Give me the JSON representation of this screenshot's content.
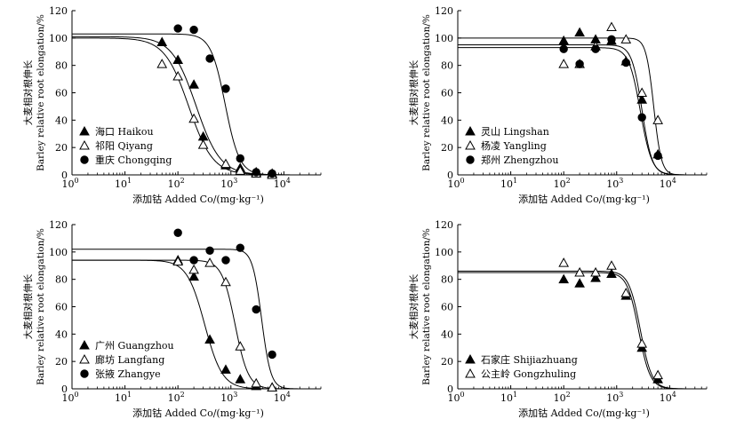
{
  "chart_data": [
    {
      "type": "scatter",
      "xlabel": "添加钴 Added Co/(mg·kg⁻¹)",
      "ylabel_cn": "大麦相对根伸长",
      "ylabel_en": "Barley relative root elongation/%",
      "x_scale": "log",
      "xlim": [
        1,
        50000
      ],
      "ylim": [
        0,
        120
      ],
      "yticks": [
        "0",
        "20",
        "40",
        "60",
        "80",
        "100",
        "120"
      ],
      "xtick_base": "10",
      "xtick_exps": [
        "0",
        "1",
        "2",
        "3",
        "4"
      ],
      "legend_position": "lower-left",
      "series": [
        {
          "name": "海口 Haikou",
          "marker": "filled-triangle",
          "fit": {
            "top": 101,
            "ec50": 220,
            "slope": 1.9
          },
          "x": [
            50,
            100,
            200,
            300,
            800,
            1500,
            3000,
            6000
          ],
          "y": [
            97,
            84,
            66,
            28,
            7,
            5,
            2,
            1
          ]
        },
        {
          "name": "祁阳 Qiyang",
          "marker": "open-triangle",
          "fit": {
            "top": 100,
            "ec50": 160,
            "slope": 1.9
          },
          "x": [
            50,
            100,
            200,
            300,
            800,
            1500,
            3000,
            6000
          ],
          "y": [
            81,
            72,
            41,
            22,
            8,
            3,
            1,
            0
          ]
        },
        {
          "name": "重庆 Chongqing",
          "marker": "filled-circle",
          "fit": {
            "top": 103,
            "ec50": 780,
            "slope": 3.2
          },
          "x": [
            100,
            200,
            400,
            800,
            1500,
            3000,
            6000
          ],
          "y": [
            107,
            106,
            85,
            63,
            12,
            2,
            1
          ]
        }
      ]
    },
    {
      "type": "scatter",
      "xlabel": "添加钴 Added Co/(mg·kg⁻¹)",
      "ylabel_cn": "大麦相对根伸长",
      "ylabel_en": "Barley relative root elongation/%",
      "x_scale": "log",
      "xlim": [
        1,
        50000
      ],
      "ylim": [
        0,
        120
      ],
      "yticks": [
        "0",
        "20",
        "40",
        "60",
        "80",
        "100",
        "120"
      ],
      "xtick_base": "10",
      "xtick_exps": [
        "0",
        "1",
        "2",
        "3",
        "4"
      ],
      "legend_position": "lower-left",
      "series": [
        {
          "name": "灵山 Lingshan",
          "marker": "filled-triangle",
          "fit": {
            "top": 95,
            "ec50": 3000,
            "slope": 4.5
          },
          "x": [
            100,
            200,
            400,
            800,
            1500,
            3000,
            6000
          ],
          "y": [
            98,
            104,
            99,
            98,
            83,
            55,
            15
          ]
        },
        {
          "name": "杨凌 Yangling",
          "marker": "open-triangle",
          "fit": {
            "top": 100,
            "ec50": 5000,
            "slope": 6.0
          },
          "x": [
            100,
            200,
            400,
            800,
            1500,
            3000,
            6000
          ],
          "y": [
            81,
            81,
            94,
            108,
            99,
            60,
            40
          ]
        },
        {
          "name": "郑州 Zhengzhou",
          "marker": "filled-circle",
          "fit": {
            "top": 93,
            "ec50": 2800,
            "slope": 4.0
          },
          "x": [
            100,
            200,
            400,
            800,
            1500,
            3000,
            6000
          ],
          "y": [
            92,
            81,
            92,
            99,
            82,
            42,
            14
          ]
        }
      ]
    },
    {
      "type": "scatter",
      "xlabel": "添加钴 Added Co/(mg·kg⁻¹)",
      "ylabel_cn": "大麦相对根伸长",
      "ylabel_en": "Barley relative root elongation/%",
      "x_scale": "log",
      "xlim": [
        1,
        50000
      ],
      "ylim": [
        0,
        120
      ],
      "yticks": [
        "0",
        "20",
        "40",
        "60",
        "80",
        "100",
        "120"
      ],
      "xtick_base": "10",
      "xtick_exps": [
        "0",
        "1",
        "2",
        "3",
        "4"
      ],
      "legend_position": "lower-left",
      "series": [
        {
          "name": "广州 Guangzhou",
          "marker": "filled-triangle",
          "fit": {
            "top": 94,
            "ec50": 320,
            "slope": 2.6
          },
          "x": [
            100,
            200,
            400,
            800,
            1500,
            3000,
            6000
          ],
          "y": [
            94,
            82,
            36,
            14,
            7,
            2,
            1
          ]
        },
        {
          "name": "廊坊 Langfang",
          "marker": "open-triangle",
          "fit": {
            "top": 94,
            "ec50": 1200,
            "slope": 3.5
          },
          "x": [
            100,
            200,
            400,
            800,
            1500,
            3000,
            6000
          ],
          "y": [
            93,
            87,
            92,
            78,
            31,
            4,
            1
          ]
        },
        {
          "name": "张掖 Zhangye",
          "marker": "filled-circle",
          "fit": {
            "top": 102,
            "ec50": 3800,
            "slope": 5.0
          },
          "x": [
            100,
            200,
            400,
            800,
            1500,
            3000,
            6000
          ],
          "y": [
            114,
            94,
            101,
            94,
            103,
            58,
            25
          ]
        }
      ]
    },
    {
      "type": "scatter",
      "xlabel": "添加钴 Added Co/(mg·kg⁻¹)",
      "ylabel_cn": "大麦相对根伸长",
      "ylabel_en": "Barley relative root elongation/%",
      "x_scale": "log",
      "xlim": [
        1,
        50000
      ],
      "ylim": [
        0,
        120
      ],
      "yticks": [
        "0",
        "20",
        "40",
        "60",
        "80",
        "100",
        "120"
      ],
      "xtick_base": "10",
      "xtick_exps": [
        "0",
        "1",
        "2",
        "3",
        "4"
      ],
      "legend_position": "lower-left",
      "series": [
        {
          "name": "石家庄 Shijiazhuang",
          "marker": "filled-triangle",
          "fit": {
            "top": 85,
            "ec50": 2600,
            "slope": 4.0
          },
          "x": [
            100,
            200,
            400,
            800,
            1500,
            3000,
            6000
          ],
          "y": [
            80,
            77,
            81,
            84,
            68,
            30,
            7
          ]
        },
        {
          "name": "公主岭 Gongzhuling",
          "marker": "open-triangle",
          "fit": {
            "top": 86,
            "ec50": 2800,
            "slope": 4.0
          },
          "x": [
            100,
            200,
            400,
            800,
            1500,
            3000,
            6000
          ],
          "y": [
            92,
            85,
            85,
            90,
            70,
            33,
            10
          ]
        }
      ]
    }
  ]
}
